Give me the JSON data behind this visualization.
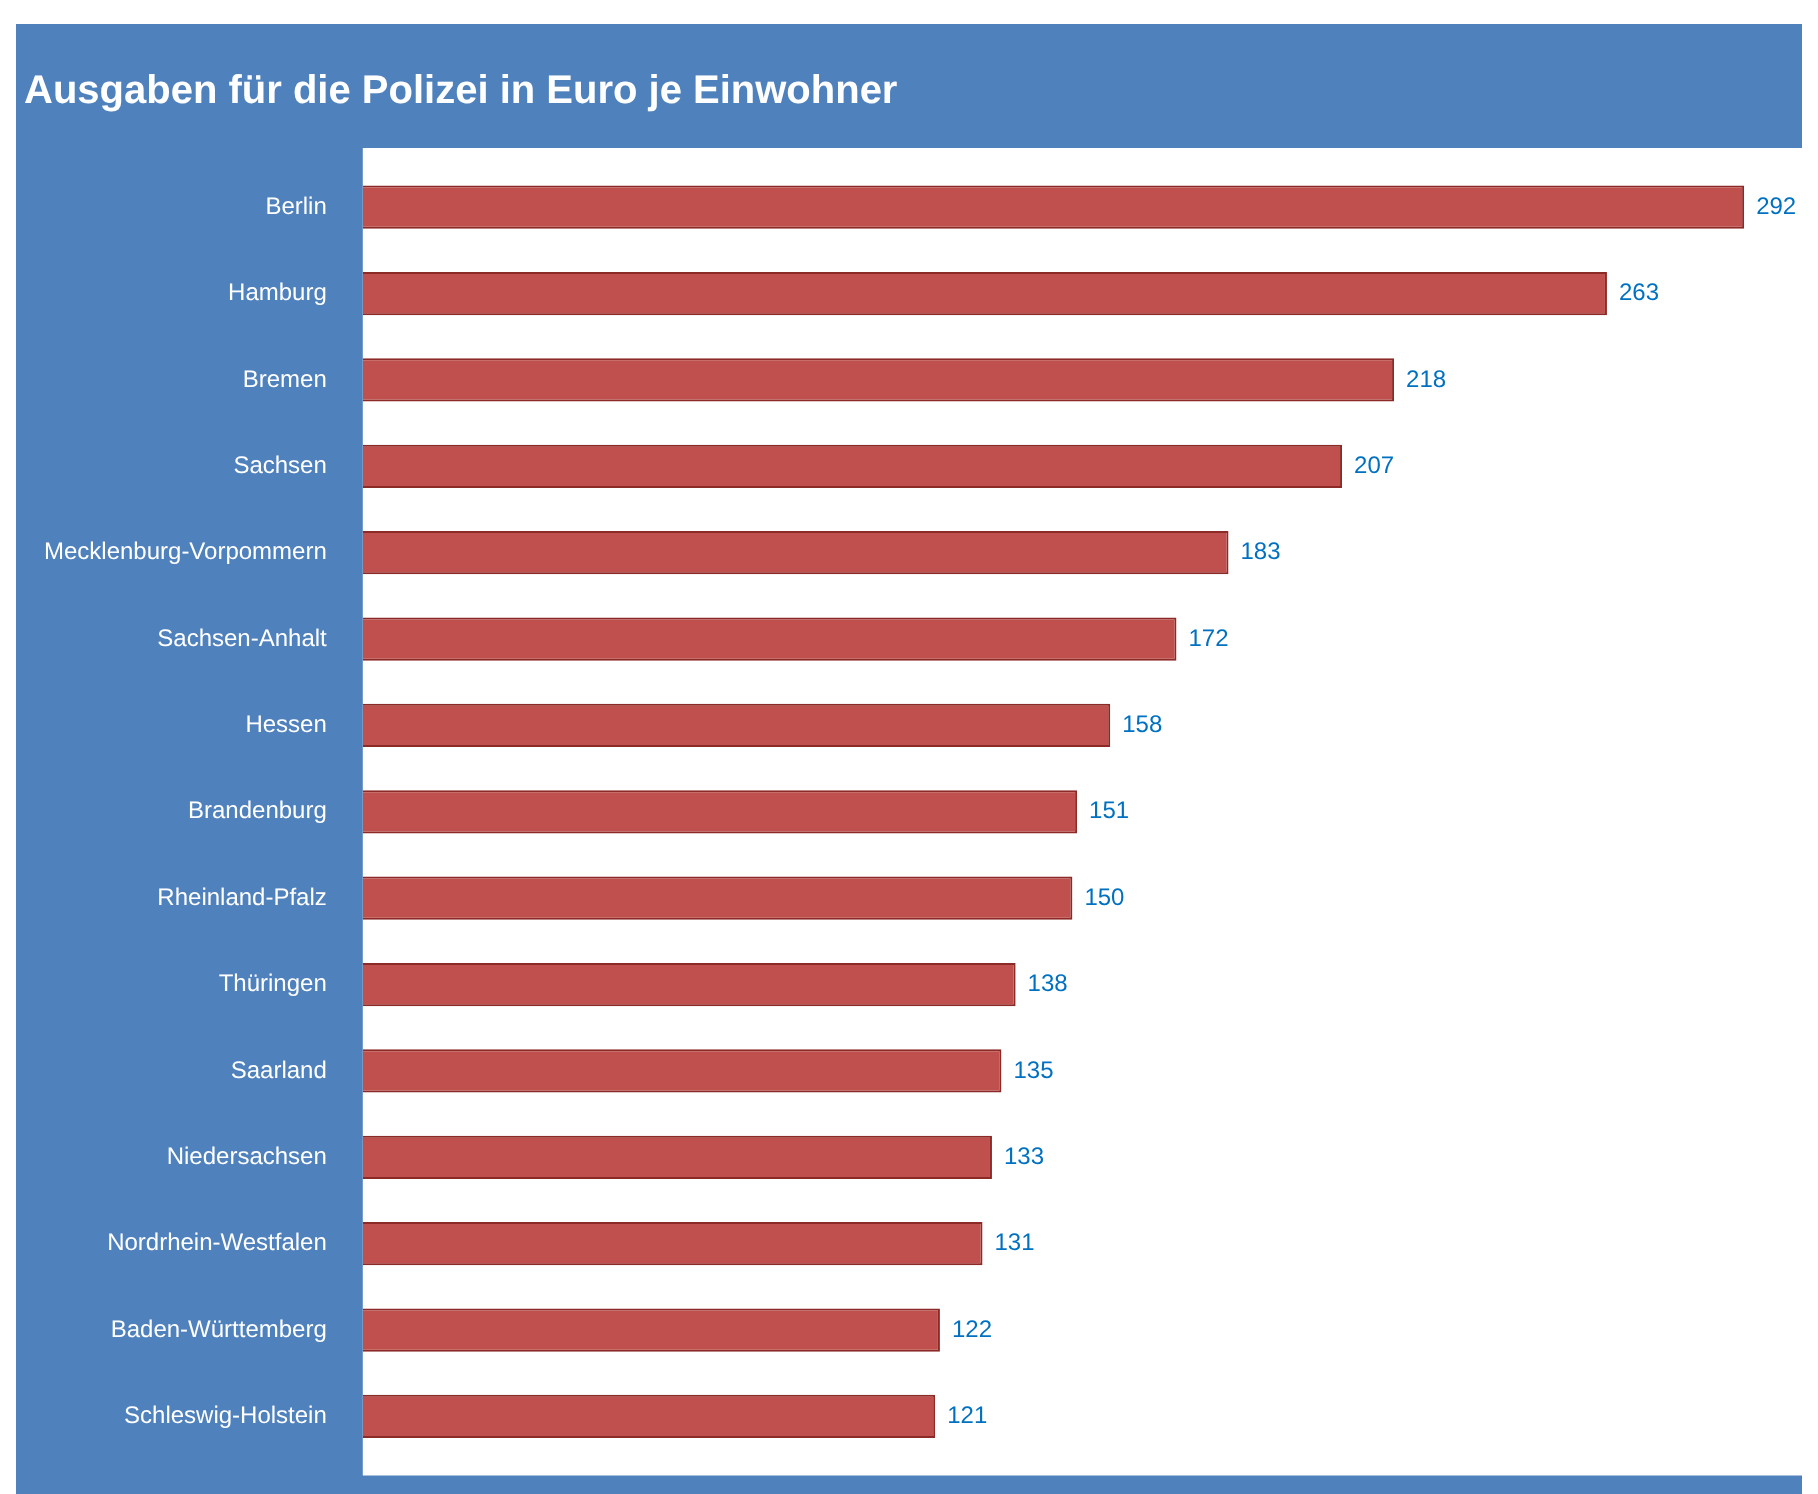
{
  "chart_data": {
    "type": "bar",
    "orientation": "horizontal",
    "title": "Ausgaben für die Polizei in Euro je Einwohner",
    "categories": [
      "Berlin",
      "Hamburg",
      "Bremen",
      "Sachsen",
      "Mecklenburg-Vorpommern",
      "Sachsen-Anhalt",
      "Hessen",
      "Brandenburg",
      "Rheinland-Pfalz",
      "Thüringen",
      "Saarland",
      "Niedersachsen",
      "Nordrhein-Westfalen",
      "Baden-Württemberg",
      "Schleswig-Holstein"
    ],
    "values": [
      292,
      263,
      218,
      207,
      183,
      172,
      158,
      151,
      150,
      138,
      135,
      133,
      131,
      122,
      121
    ],
    "color": "#c0504d",
    "data_labels": true,
    "grid": false,
    "legend": false
  }
}
